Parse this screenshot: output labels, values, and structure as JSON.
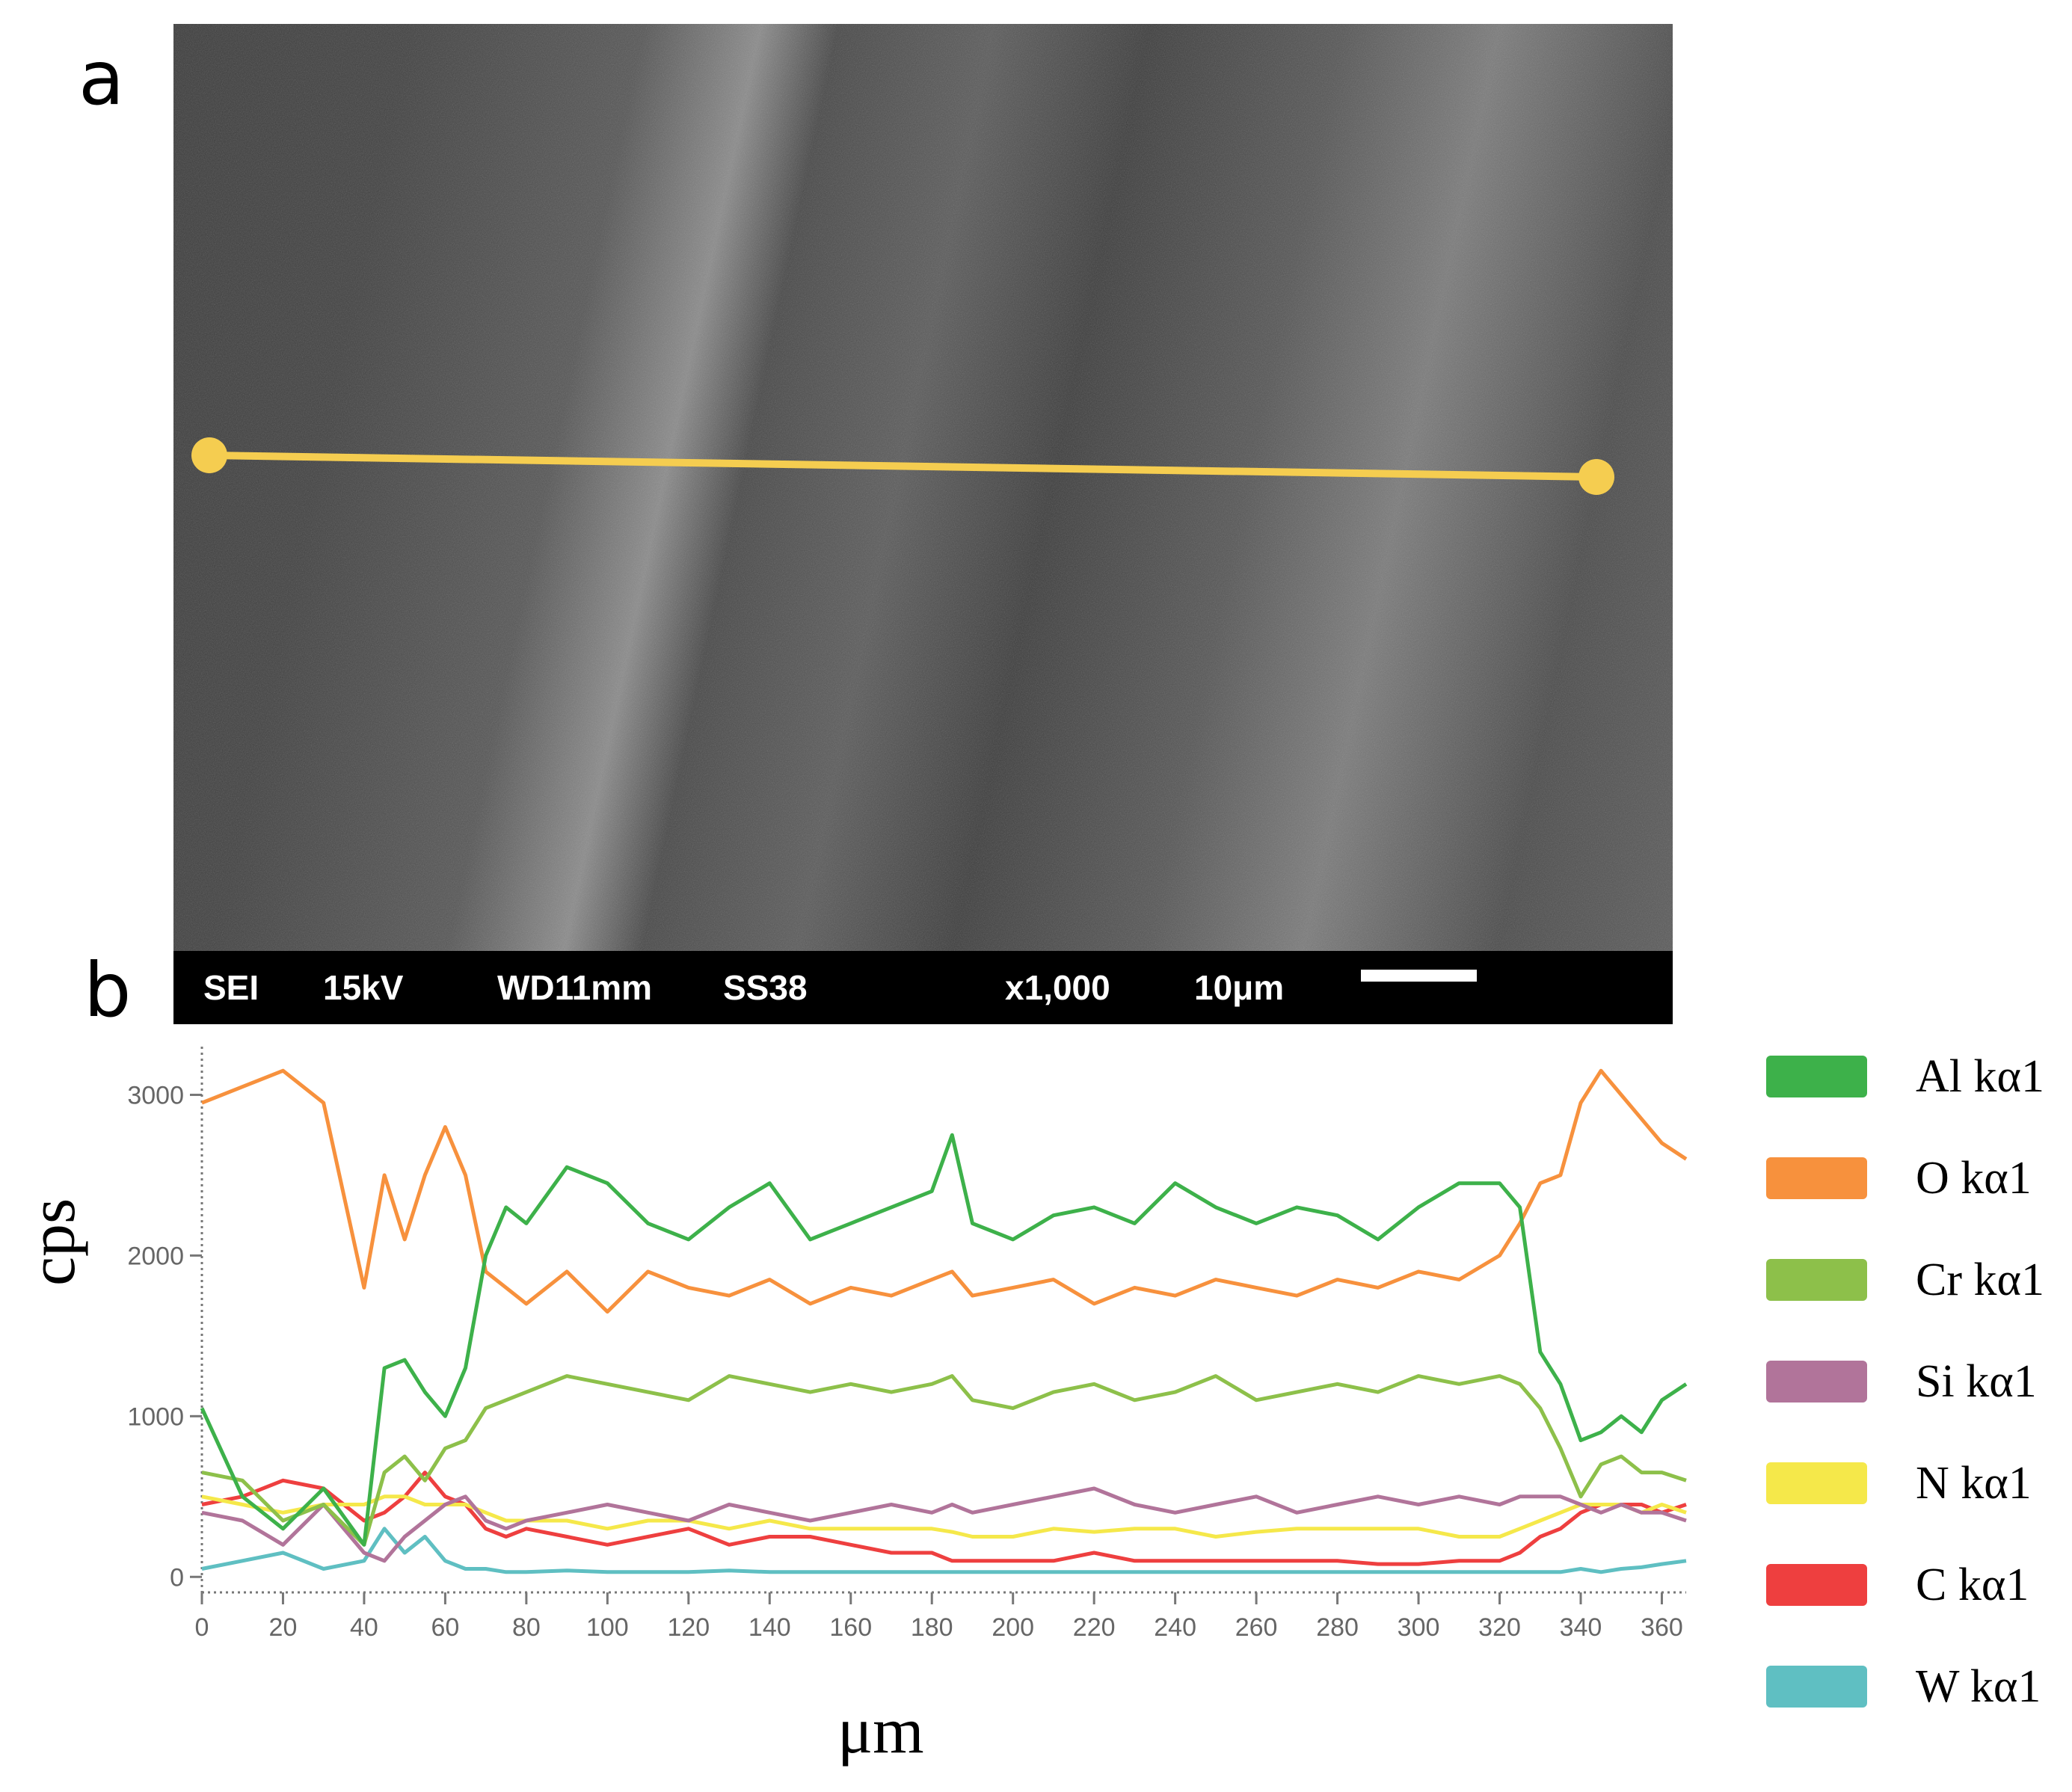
{
  "panels": {
    "a": "a",
    "b": "b"
  },
  "sem": {
    "info_bar": {
      "mode": "SEI",
      "voltage": "15kV",
      "working_distance": "WD11mm",
      "spot_size": "SS38",
      "magnification": "x1,000",
      "scale": "10μm"
    },
    "scan_line_color": "#F5CD50"
  },
  "chart_data": {
    "type": "line",
    "title": "",
    "xlabel": "μm",
    "ylabel": "cps",
    "xlim": [
      0,
      366
    ],
    "ylim": [
      -50,
      3300
    ],
    "xticks": [
      0,
      20,
      40,
      60,
      80,
      100,
      120,
      140,
      160,
      180,
      200,
      220,
      240,
      260,
      280,
      300,
      320,
      340,
      360
    ],
    "yticks": [
      0,
      1000,
      2000,
      3000
    ],
    "grid": false,
    "legend_position": "right",
    "x": [
      0,
      10,
      20,
      30,
      40,
      45,
      50,
      55,
      60,
      65,
      70,
      75,
      80,
      90,
      100,
      110,
      120,
      130,
      140,
      150,
      160,
      170,
      180,
      185,
      190,
      200,
      210,
      220,
      230,
      240,
      250,
      260,
      270,
      280,
      290,
      300,
      310,
      320,
      325,
      330,
      335,
      340,
      345,
      350,
      355,
      360,
      366
    ],
    "series": [
      {
        "name": "Al kα1",
        "color": "#3DB14A",
        "values": [
          1050,
          500,
          300,
          550,
          200,
          1300,
          1350,
          1150,
          1000,
          1300,
          2000,
          2300,
          2200,
          2550,
          2450,
          2200,
          2100,
          2300,
          2450,
          2100,
          2200,
          2300,
          2400,
          2750,
          2200,
          2100,
          2250,
          2300,
          2200,
          2450,
          2300,
          2200,
          2300,
          2250,
          2100,
          2300,
          2450,
          2450,
          2300,
          1400,
          1200,
          850,
          900,
          1000,
          900,
          1100,
          1200
        ]
      },
      {
        "name": "O kα1",
        "color": "#F7913D",
        "values": [
          2950,
          3050,
          3150,
          2950,
          1800,
          2500,
          2100,
          2500,
          2800,
          2500,
          1900,
          1800,
          1700,
          1900,
          1650,
          1900,
          1800,
          1750,
          1850,
          1700,
          1800,
          1750,
          1850,
          1900,
          1750,
          1800,
          1850,
          1700,
          1800,
          1750,
          1850,
          1800,
          1750,
          1850,
          1800,
          1900,
          1850,
          2000,
          2200,
          2450,
          2500,
          2950,
          3150,
          3000,
          2850,
          2700,
          2600
        ]
      },
      {
        "name": "Cr kα1",
        "color": "#8DC04A",
        "values": [
          650,
          600,
          350,
          450,
          200,
          650,
          750,
          600,
          800,
          850,
          1050,
          1100,
          1150,
          1250,
          1200,
          1150,
          1100,
          1250,
          1200,
          1150,
          1200,
          1150,
          1200,
          1250,
          1100,
          1050,
          1150,
          1200,
          1100,
          1150,
          1250,
          1100,
          1150,
          1200,
          1150,
          1250,
          1200,
          1250,
          1200,
          1050,
          800,
          500,
          700,
          750,
          650,
          650,
          600
        ]
      },
      {
        "name": "Si kα1",
        "color": "#B1749A",
        "values": [
          400,
          350,
          200,
          450,
          150,
          100,
          250,
          350,
          450,
          500,
          350,
          300,
          350,
          400,
          450,
          400,
          350,
          450,
          400,
          350,
          400,
          450,
          400,
          450,
          400,
          450,
          500,
          550,
          450,
          400,
          450,
          500,
          400,
          450,
          500,
          450,
          500,
          450,
          500,
          500,
          500,
          450,
          400,
          450,
          400,
          400,
          350
        ]
      },
      {
        "name": "N kα1",
        "color": "#F5E84A",
        "values": [
          500,
          450,
          400,
          450,
          450,
          500,
          500,
          450,
          450,
          450,
          400,
          350,
          350,
          350,
          300,
          350,
          350,
          300,
          350,
          300,
          300,
          300,
          300,
          280,
          250,
          250,
          300,
          280,
          300,
          300,
          250,
          280,
          300,
          300,
          300,
          300,
          250,
          250,
          300,
          350,
          400,
          450,
          450,
          450,
          400,
          450,
          400
        ]
      },
      {
        "name": "C kα1",
        "color": "#EE3F3F",
        "values": [
          450,
          500,
          600,
          550,
          350,
          400,
          500,
          650,
          500,
          450,
          300,
          250,
          300,
          250,
          200,
          250,
          300,
          200,
          250,
          250,
          200,
          150,
          150,
          100,
          100,
          100,
          100,
          150,
          100,
          100,
          100,
          100,
          100,
          100,
          80,
          80,
          100,
          100,
          150,
          250,
          300,
          400,
          450,
          450,
          450,
          400,
          450
        ]
      },
      {
        "name": "W kα1",
        "color": "#5FBFC2",
        "values": [
          50,
          100,
          150,
          50,
          100,
          300,
          150,
          250,
          100,
          50,
          50,
          30,
          30,
          40,
          30,
          30,
          30,
          40,
          30,
          30,
          30,
          30,
          30,
          30,
          30,
          30,
          30,
          30,
          30,
          30,
          30,
          30,
          30,
          30,
          30,
          30,
          30,
          30,
          30,
          30,
          30,
          50,
          30,
          50,
          60,
          80,
          100
        ]
      }
    ]
  }
}
